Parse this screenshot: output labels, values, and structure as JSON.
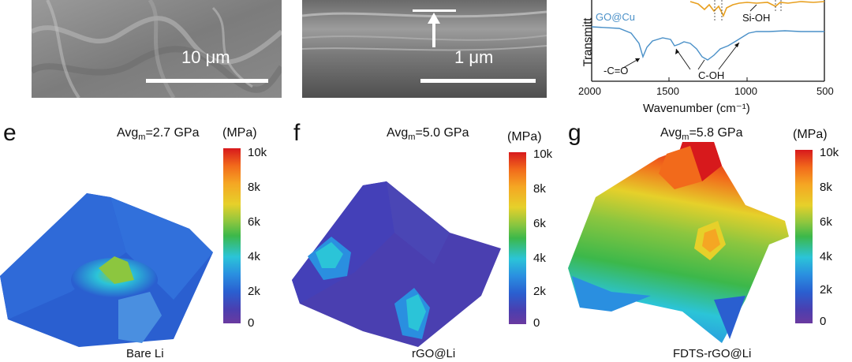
{
  "sem_panels": {
    "left_scale": "10 μm",
    "mid_scale": "1 μm"
  },
  "ir_panel": {
    "ylabel": "Transmitt",
    "xlabel": "Wavenumber (cm⁻¹)",
    "xticks": [
      "2000",
      "1500",
      "1000",
      "500"
    ],
    "series": [
      "GO@Cu"
    ],
    "annotations": [
      "Si-OH",
      "-C=O",
      "C-OH"
    ],
    "colors": {
      "go_cu": "#4a90c8",
      "fdts": "#e8a020"
    }
  },
  "panels": [
    {
      "letter": "e",
      "avg_prefix": "Avg",
      "avg_sub": "m",
      "avg_value": "=2.7 GPa",
      "unit": "(MPa)",
      "ticks": [
        "10k",
        "8k",
        "6k",
        "4k",
        "2k",
        "0"
      ],
      "caption": "Bare Li"
    },
    {
      "letter": "f",
      "avg_prefix": "Avg",
      "avg_sub": "m",
      "avg_value": "=5.0 GPa",
      "unit": "(MPa)",
      "ticks": [
        "10k",
        "8k",
        "6k",
        "4k",
        "2k",
        "0"
      ],
      "caption": "rGO@Li"
    },
    {
      "letter": "g",
      "avg_prefix": "Avg",
      "avg_sub": "m",
      "avg_value": "=5.8 GPa",
      "unit": "(MPa)",
      "ticks": [
        "10k",
        "8k",
        "6k",
        "4k",
        "2k",
        "0"
      ],
      "caption": "FDTS-rGO@Li"
    }
  ],
  "colormap": [
    "#d7191c",
    "#f26a1b",
    "#f5a623",
    "#e6d02a",
    "#8cc63f",
    "#3cb84a",
    "#2bc4d8",
    "#2a8fe0",
    "#2a5fd0",
    "#4a3fb0",
    "#6a3aa0"
  ]
}
